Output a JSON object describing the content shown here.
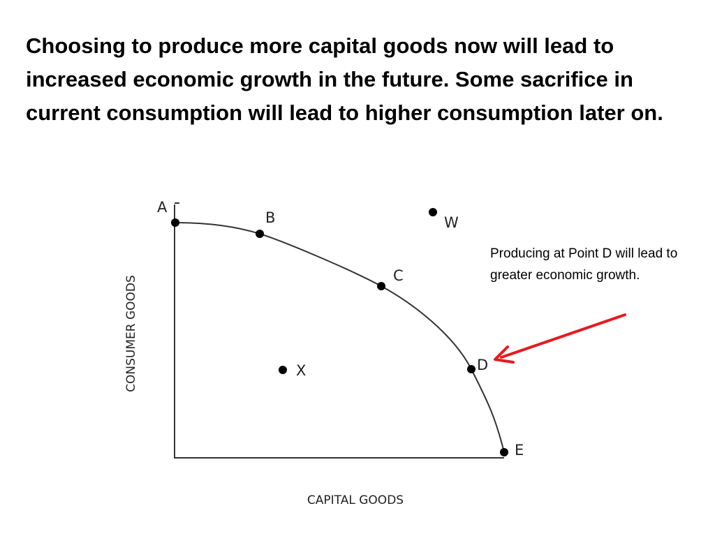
{
  "slide": {
    "title": "Choosing to produce more capital goods now will lead to increased economic growth in the future.  Some sacrifice in current consumption will lead to higher consumption later on.",
    "callout": "Producing at Point D will lead to greater economic growth."
  },
  "diagram": {
    "y_axis_label": "CONSUMER GOODS",
    "x_axis_label": "CAPITAL GOODS",
    "points": {
      "A": "A",
      "B": "B",
      "C": "C",
      "D": "D",
      "E": "E",
      "W": "W",
      "X": "X"
    },
    "arrow_color": "#e8191f",
    "curve_color": "#333333"
  }
}
